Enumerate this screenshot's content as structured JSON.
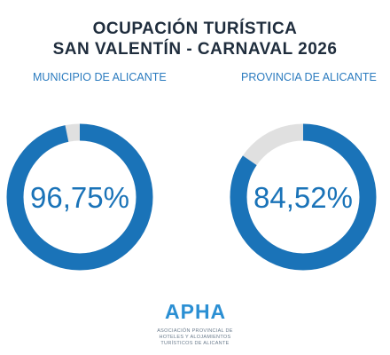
{
  "header": {
    "title_line1": "OCUPACIÓN TURÍSTICA",
    "title_line2": "SAN VALENTÍN - CARNAVAL 2026"
  },
  "colors": {
    "accent": "#1a73b8",
    "track": "#e0e0e0",
    "title": "#1f2d3d"
  },
  "chart_data": [
    {
      "type": "pie",
      "subtitle": "MUNICIPIO DE ALICANTE",
      "value": 96.75,
      "label": "96,75%"
    },
    {
      "type": "pie",
      "subtitle": "PROVINCIA DE ALICANTE",
      "value": 84.52,
      "label": "84,52%"
    }
  ],
  "footer": {
    "logo_text": "APHA",
    "org_line1": "ASOCIACIÓN PROVINCIAL DE",
    "org_line2": "HOTELES Y ALOJAMIENTOS",
    "org_line3": "TURÍSTICOS DE ALICANTE"
  }
}
